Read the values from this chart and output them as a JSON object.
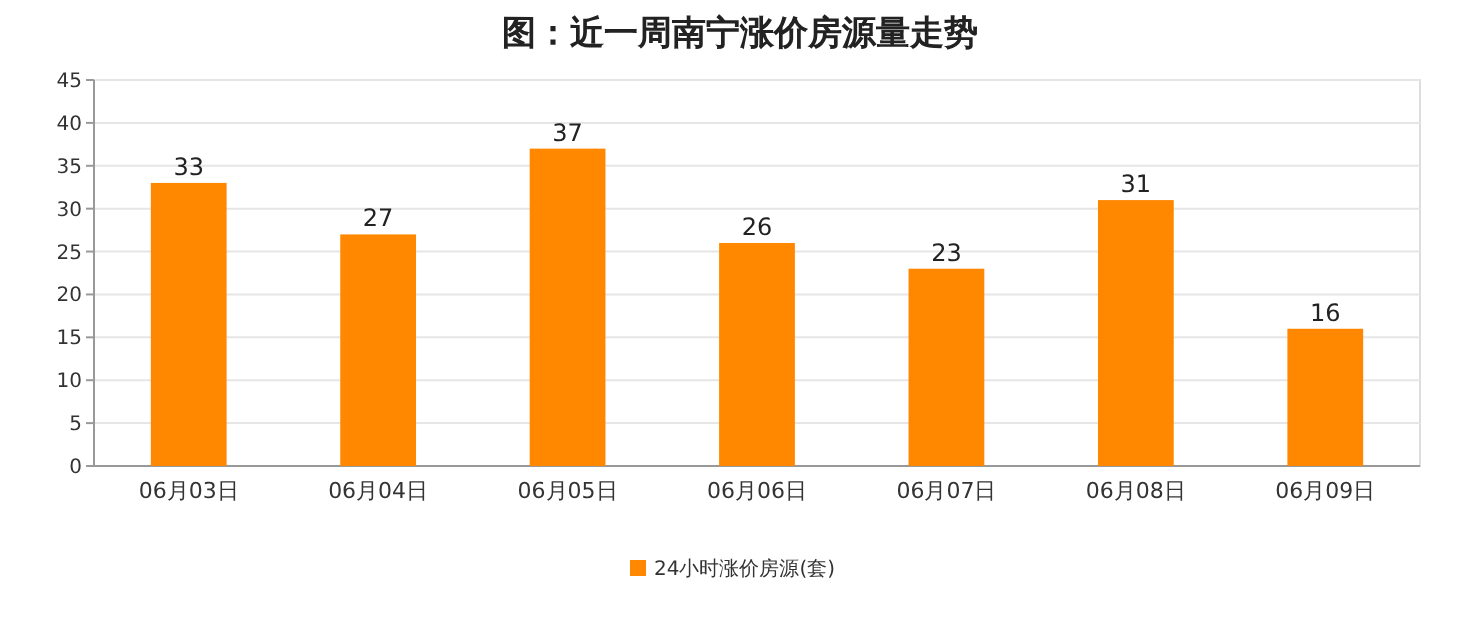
{
  "chart_data": {
    "type": "bar",
    "title": "图：近一周南宁涨价房源量走势",
    "categories": [
      "06月03日",
      "06月04日",
      "06月05日",
      "06月06日",
      "06月07日",
      "06月08日",
      "06月09日"
    ],
    "series": [
      {
        "name": "24小时涨价房源(套)",
        "color": "#ff8800",
        "values": [
          33,
          27,
          37,
          26,
          23,
          31,
          16
        ]
      }
    ],
    "ylim": [
      0,
      45
    ],
    "yticks": [
      0,
      5,
      10,
      15,
      20,
      25,
      30,
      35,
      40,
      45
    ],
    "grid": "y",
    "legend": "bottom",
    "data_labels": true
  }
}
